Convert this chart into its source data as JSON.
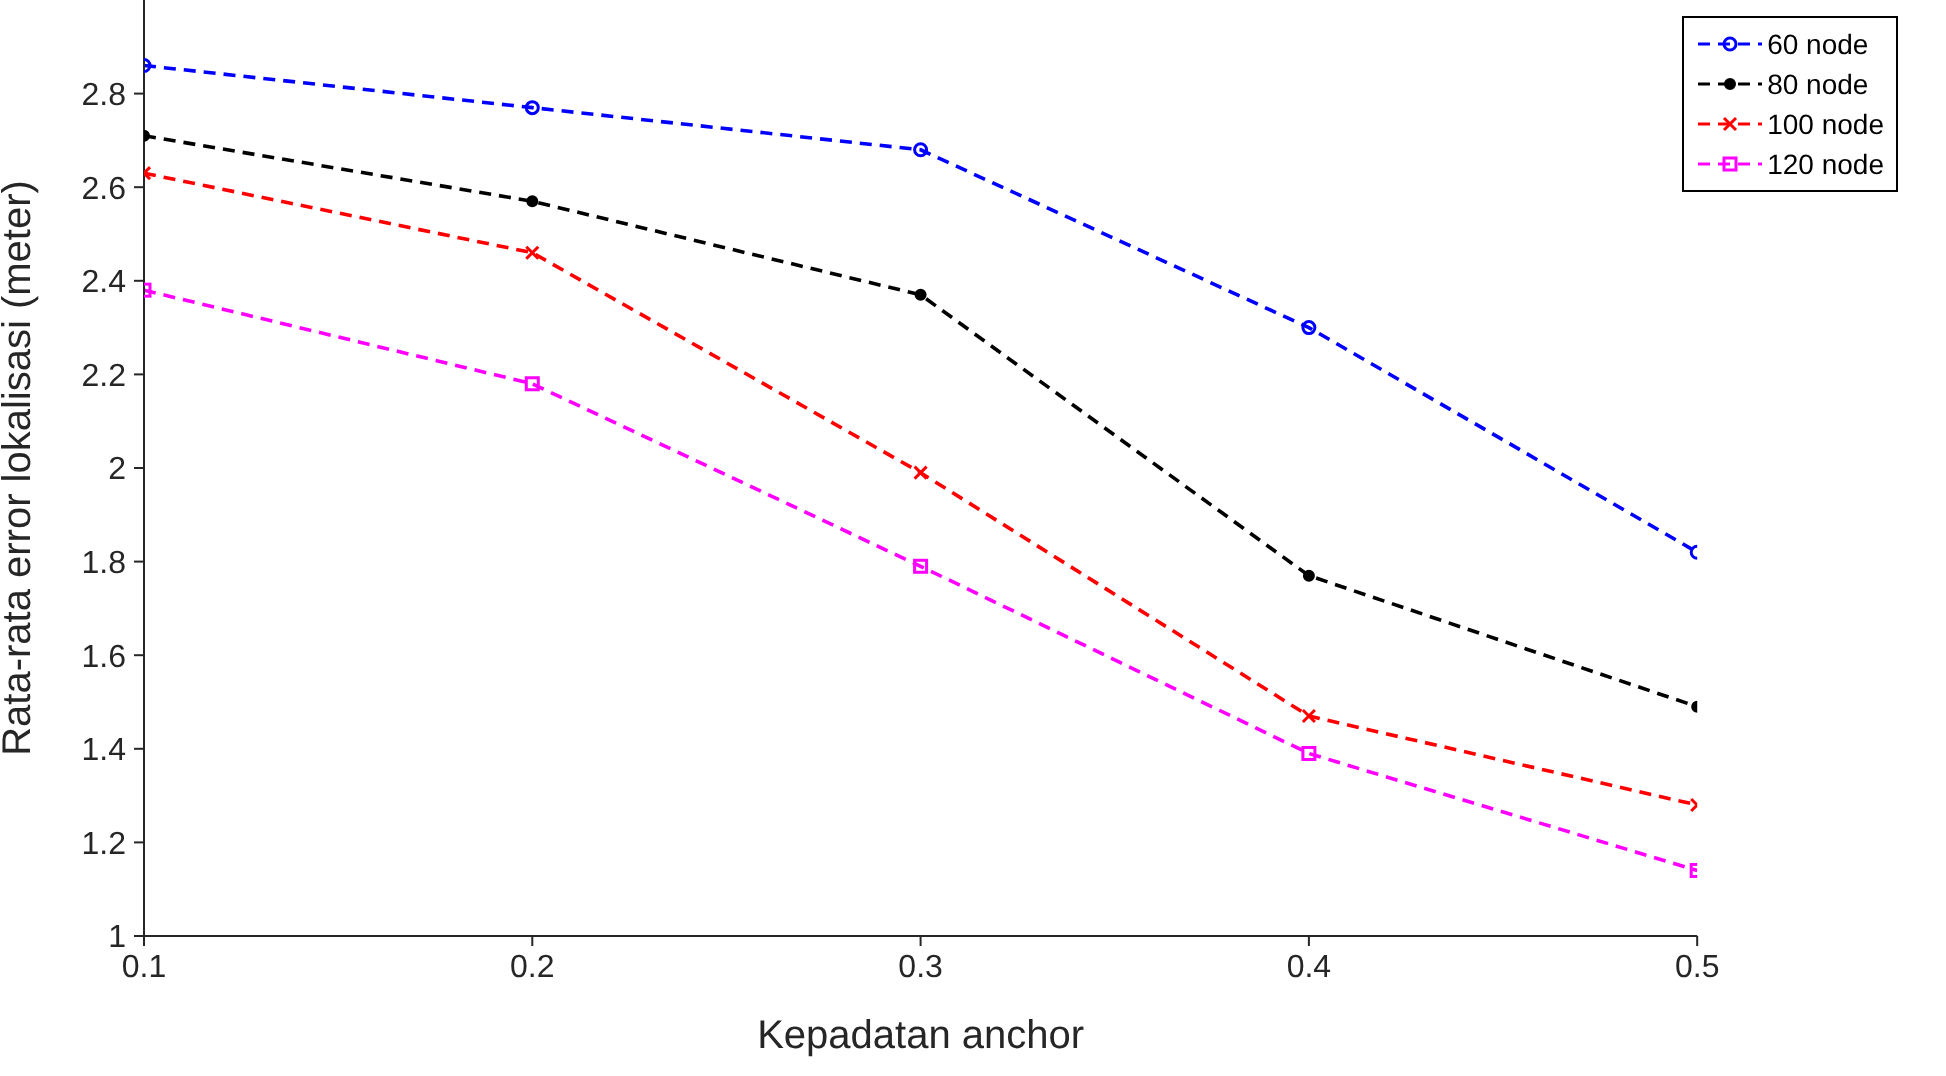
{
  "chart_data": {
    "type": "line",
    "xlabel": "Kepadatan anchor",
    "ylabel": "Rata-rata error lokalisasi (meter)",
    "x": [
      0.1,
      0.2,
      0.3,
      0.4,
      0.5
    ],
    "xlim": [
      0.1,
      0.5
    ],
    "xticks": [
      0.1,
      0.2,
      0.3,
      0.4,
      0.5
    ],
    "ylim": [
      1,
      3
    ],
    "yticks": [
      1,
      1.2,
      1.4,
      1.6,
      1.8,
      2,
      2.2,
      2.4,
      2.6,
      2.8
    ],
    "grid": false,
    "legend": "top right",
    "line_style": "dashed",
    "series": [
      {
        "name": "60 node",
        "color": "#0000ff",
        "marker": "circle",
        "values": [
          2.86,
          2.77,
          2.68,
          2.3,
          1.82
        ]
      },
      {
        "name": "80 node",
        "color": "#000000",
        "marker": "dot",
        "values": [
          2.71,
          2.57,
          2.37,
          1.77,
          1.49
        ]
      },
      {
        "name": "100 node",
        "color": "#ff0000",
        "marker": "cross",
        "values": [
          2.63,
          2.46,
          1.99,
          1.47,
          1.28
        ]
      },
      {
        "name": "120 node",
        "color": "#ff00ff",
        "marker": "square",
        "values": [
          2.38,
          2.18,
          1.79,
          1.39,
          1.14
        ]
      }
    ]
  }
}
